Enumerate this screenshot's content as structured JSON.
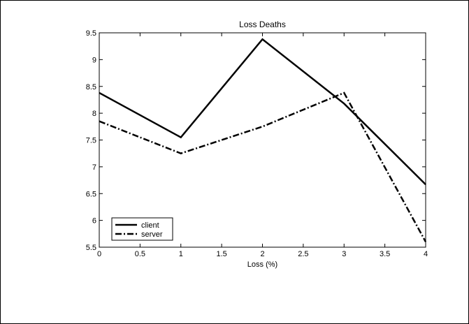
{
  "chart_data": {
    "type": "line",
    "title": "Loss Deaths",
    "xlabel": "Loss (%)",
    "ylabel": "",
    "xlim": [
      0,
      4
    ],
    "ylim": [
      5.5,
      9.5
    ],
    "xticks": [
      "0",
      "0.5",
      "1",
      "1.5",
      "2",
      "2.5",
      "3",
      "3.5",
      "4"
    ],
    "yticks": [
      "5.5",
      "6",
      "6.5",
      "7",
      "7.5",
      "8",
      "8.5",
      "9",
      "9.5"
    ],
    "x": [
      0,
      1,
      2,
      3,
      4
    ],
    "series": [
      {
        "name": "client",
        "style": "solid",
        "color": "#000000",
        "values": [
          8.38,
          7.55,
          9.38,
          8.18,
          6.67
        ]
      },
      {
        "name": "server",
        "style": "dash-dot",
        "color": "#000000",
        "values": [
          7.85,
          7.25,
          7.75,
          8.38,
          5.6
        ]
      }
    ],
    "grid": false,
    "legend_position": "bottom-left"
  }
}
